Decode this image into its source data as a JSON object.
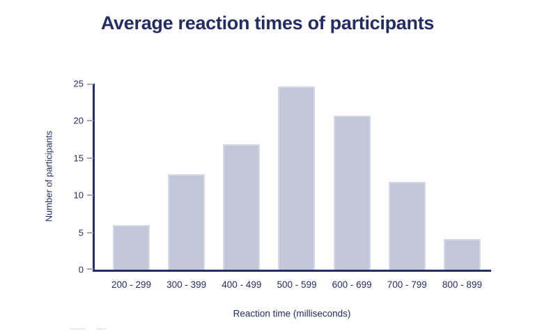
{
  "page": {
    "background": "#ffffff"
  },
  "title": "Average reaction times of participants",
  "chart_data": {
    "type": "bar",
    "title": "Average reaction times of participants",
    "categories": [
      "200 - 299",
      "300 - 399",
      "400 - 499",
      "500 - 599",
      "600 - 699",
      "700 - 799",
      "800 - 899"
    ],
    "values": [
      6.0,
      12.8,
      16.9,
      24.6,
      20.7,
      11.8,
      4.1
    ],
    "xlabel": "Reaction time (milliseconds)",
    "ylabel": "Number of participants",
    "ylim": [
      0,
      25
    ],
    "yticks": [
      0,
      5,
      10,
      15,
      20,
      25
    ],
    "grid": false,
    "legend": null,
    "colors": {
      "title_text": "#232d63",
      "axis_line": "#232d63",
      "tick_mark": "#a3a9bf",
      "label_text": "#232d63",
      "bar_fill": "#c2c8da",
      "bar_border": "#d6dae6",
      "background": "#ffffff"
    }
  }
}
